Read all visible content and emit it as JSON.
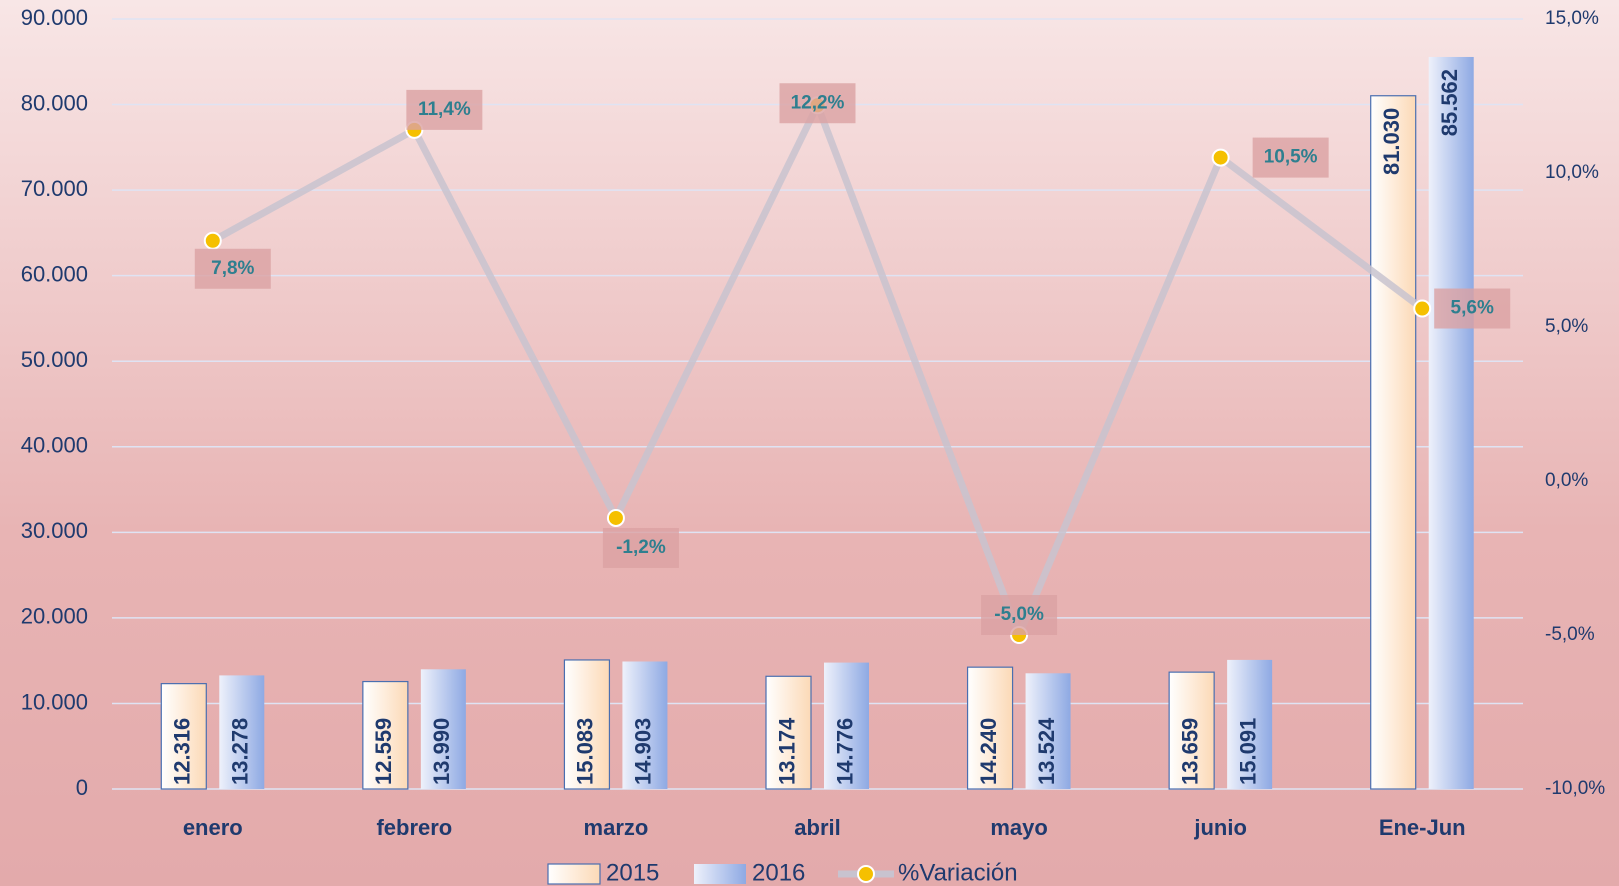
{
  "chart_data": {
    "type": "bar_line",
    "categories": [
      "enero",
      "febrero",
      "marzo",
      "abril",
      "mayo",
      "junio",
      "Ene-Jun"
    ],
    "series": [
      {
        "name": "2015",
        "color": "#fde3c8",
        "values": [
          12316,
          12559,
          15083,
          13174,
          14240,
          13659,
          81030
        ],
        "value_labels": [
          "12.316",
          "12.559",
          "15.083",
          "13.174",
          "14.240",
          "13.659",
          "81.030"
        ]
      },
      {
        "name": "2016",
        "color": "#9fb6e8",
        "values": [
          13278,
          13990,
          14903,
          14776,
          13524,
          15091,
          85562
        ],
        "value_labels": [
          "13.278",
          "13.990",
          "14.903",
          "14.776",
          "13.524",
          "15.091",
          "85.562"
        ]
      },
      {
        "name": "%Variación",
        "color": "#c8c3cf",
        "marker_color": "#f5c000",
        "axis": "y2",
        "values": [
          7.8,
          11.4,
          -1.2,
          12.2,
          -5.0,
          10.5,
          5.6
        ],
        "value_labels": [
          "7,8%",
          "11,4%",
          "-1,2%",
          "12,2%",
          "-5,0%",
          "10,5%",
          "5,6%"
        ]
      }
    ],
    "ylim": [
      0,
      90000
    ],
    "yticks": [
      0,
      {
        "value": 10000,
        "label": "10.000"
      },
      {
        "value": 20000,
        "label": "20.000"
      },
      {
        "value": 30000,
        "label": "30.000"
      },
      {
        "value": 40000,
        "label": "40.000"
      },
      {
        "value": 50000,
        "label": "50.000"
      },
      {
        "value": 60000,
        "label": "60.000"
      },
      {
        "value": 70000,
        "label": "70.000"
      },
      {
        "value": 80000,
        "label": "80.000"
      },
      {
        "value": 90000,
        "label": "90.000"
      }
    ],
    "y2lim": [
      -10,
      15
    ],
    "y2ticks": [
      {
        "value": -10,
        "label": "-10,0%"
      },
      {
        "value": -5,
        "label": "-5,0%"
      },
      {
        "value": 0,
        "label": "0,0%"
      },
      {
        "value": 5,
        "label": "5,0%"
      },
      {
        "value": 10,
        "label": "10,0%"
      },
      {
        "value": 15,
        "label": "15,0%"
      }
    ],
    "grid": true,
    "legend": "bottom"
  }
}
